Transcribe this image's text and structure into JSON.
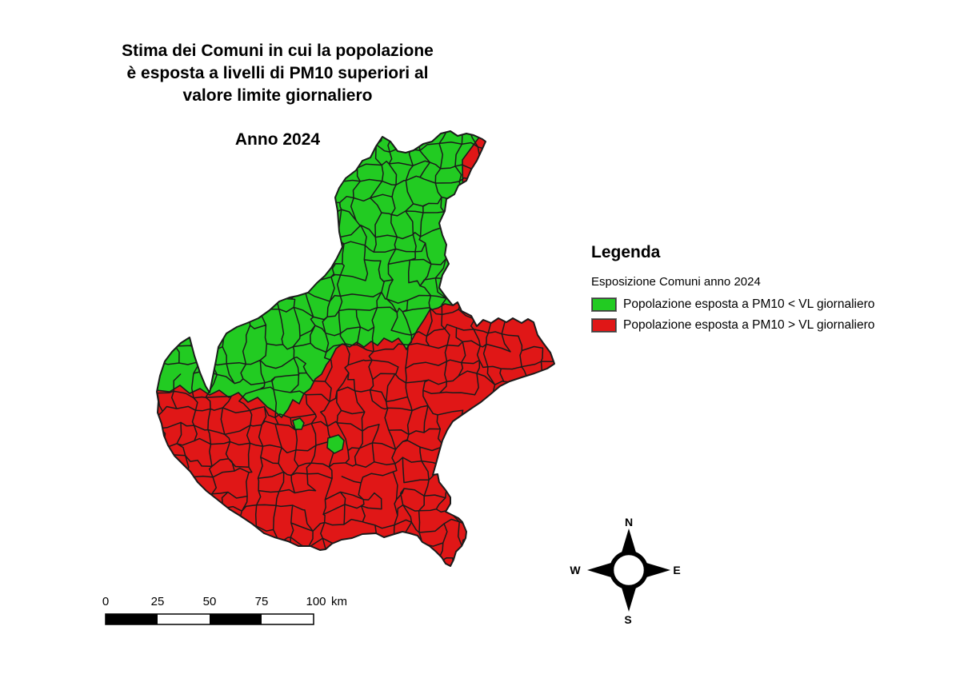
{
  "title": {
    "line1": "Stima dei Comuni in cui la popolazione",
    "line2": "è esposta a livelli di PM10 superiori al",
    "line3": "valore limite giornaliero",
    "year_label": "Anno 2024"
  },
  "legend": {
    "heading": "Legenda",
    "subtitle": "Esposizione Comuni anno 2024",
    "items": [
      {
        "label": "Popolazione esposta a PM10 < VL giornaliero",
        "color_key": "green"
      },
      {
        "label": "Popolazione esposta a PM10 > VL giornaliero",
        "color_key": "red"
      }
    ]
  },
  "scalebar": {
    "labels": [
      "0",
      "25",
      "50",
      "75",
      "100"
    ],
    "unit": "km"
  },
  "compass": {
    "north": "N",
    "east": "E",
    "south": "S",
    "west": "W"
  },
  "colors": {
    "green": "#22CB22",
    "red": "#E01717",
    "boundary": "#1b1b1b",
    "scalebar_fill": "#000000"
  }
}
